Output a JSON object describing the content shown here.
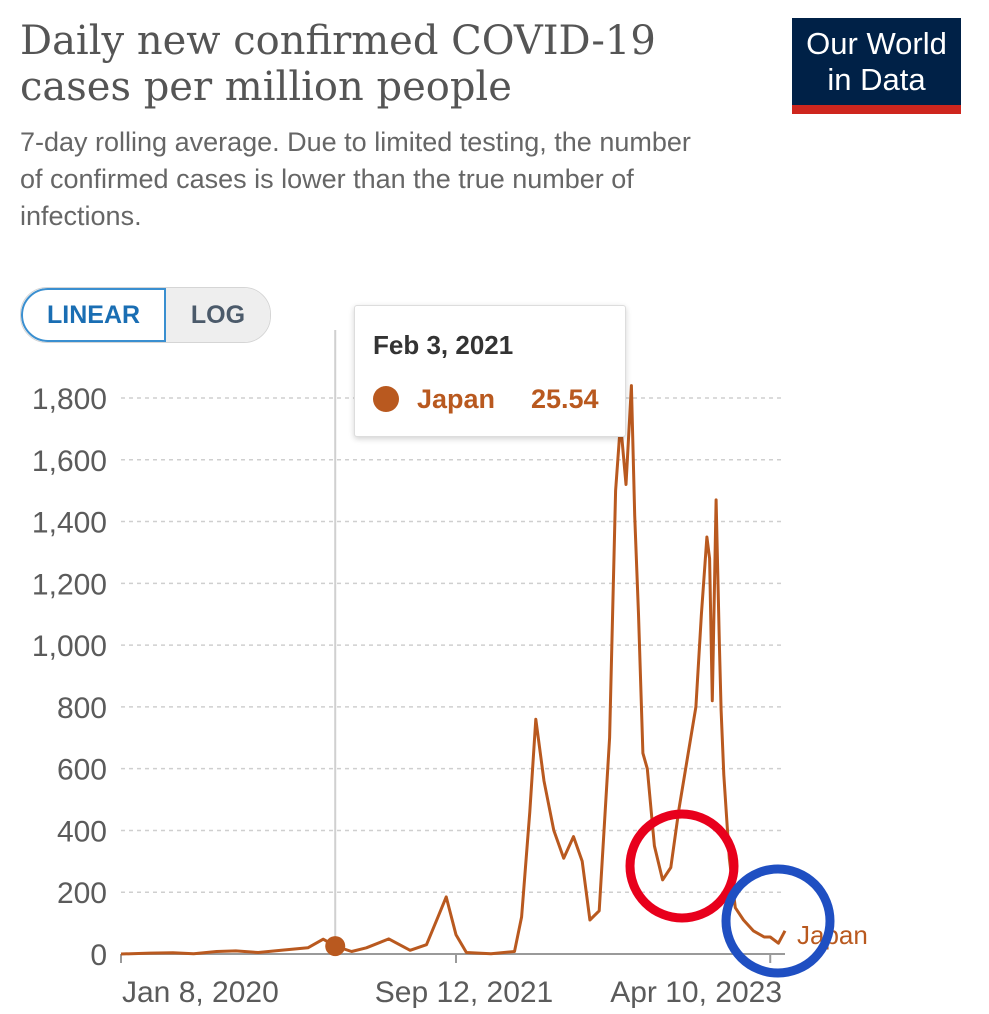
{
  "header": {
    "title": "Daily new confirmed COVID-19 cases per million people",
    "subtitle": "7-day rolling average. Due to limited testing, the number of confirmed cases is lower than the true number of infections.",
    "logo_line1": "Our World",
    "logo_line2": "in Data"
  },
  "controls": {
    "linear_label": "LINEAR",
    "log_label": "LOG",
    "active_scale": "linear"
  },
  "tooltip": {
    "date": "Feb 3, 2021",
    "series": "Japan",
    "value": "25.54"
  },
  "colors": {
    "series": "#b9591f",
    "grid": "#cfcfcf",
    "axis_text": "#5b5b5b",
    "highlight_red": "#e8001c",
    "highlight_blue": "#1f4fc2"
  },
  "chart_data": {
    "type": "line",
    "title": "Daily new confirmed COVID-19 cases per million people",
    "xlabel": "",
    "ylabel": "",
    "ylim": [
      0,
      1800
    ],
    "yticks": [
      "0",
      "200",
      "400",
      "600",
      "800",
      "1,000",
      "1,200",
      "1,400",
      "1,600",
      "1,800"
    ],
    "xticks": [
      "Jan 8, 2020",
      "Sep 12, 2021",
      "Apr 10, 2023"
    ],
    "grid": true,
    "legend": "end-label",
    "series": [
      {
        "name": "Japan",
        "x": [
          "2020-01-08",
          "2020-03-01",
          "2020-04-12",
          "2020-05-20",
          "2020-07-01",
          "2020-08-05",
          "2020-09-15",
          "2020-11-01",
          "2020-12-15",
          "2021-01-12",
          "2021-02-03",
          "2021-03-05",
          "2021-04-01",
          "2021-05-12",
          "2021-06-20",
          "2021-07-20",
          "2021-08-10",
          "2021-08-25",
          "2021-09-12",
          "2021-10-01",
          "2021-11-15",
          "2021-12-28",
          "2022-01-10",
          "2022-01-25",
          "2022-02-05",
          "2022-02-20",
          "2022-03-10",
          "2022-03-28",
          "2022-04-15",
          "2022-05-01",
          "2022-05-15",
          "2022-06-01",
          "2022-06-20",
          "2022-07-01",
          "2022-07-10",
          "2022-07-20",
          "2022-07-30",
          "2022-08-05",
          "2022-08-12",
          "2022-08-20",
          "2022-08-28",
          "2022-09-10",
          "2022-09-25",
          "2022-10-10",
          "2022-10-25",
          "2022-11-10",
          "2022-11-25",
          "2022-12-05",
          "2022-12-15",
          "2022-12-20",
          "2022-12-25",
          "2023-01-01",
          "2023-01-07",
          "2023-01-10",
          "2023-01-15",
          "2023-01-25",
          "2023-02-05",
          "2023-02-20",
          "2023-03-10",
          "2023-03-30",
          "2023-04-10",
          "2023-04-25",
          "2023-05-07"
        ],
        "y": [
          0,
          3,
          4,
          1,
          8,
          10,
          5,
          13,
          20,
          48,
          25.54,
          8,
          20,
          49,
          12,
          30,
          120,
          185,
          62,
          5,
          1,
          8,
          120,
          460,
          760,
          560,
          400,
          310,
          380,
          300,
          110,
          140,
          700,
          1500,
          1720,
          1520,
          1840,
          1420,
          1100,
          650,
          600,
          350,
          240,
          280,
          470,
          640,
          800,
          1100,
          1350,
          1280,
          820,
          1470,
          1000,
          790,
          580,
          310,
          150,
          110,
          75,
          55,
          55,
          35,
          75
        ]
      }
    ]
  }
}
